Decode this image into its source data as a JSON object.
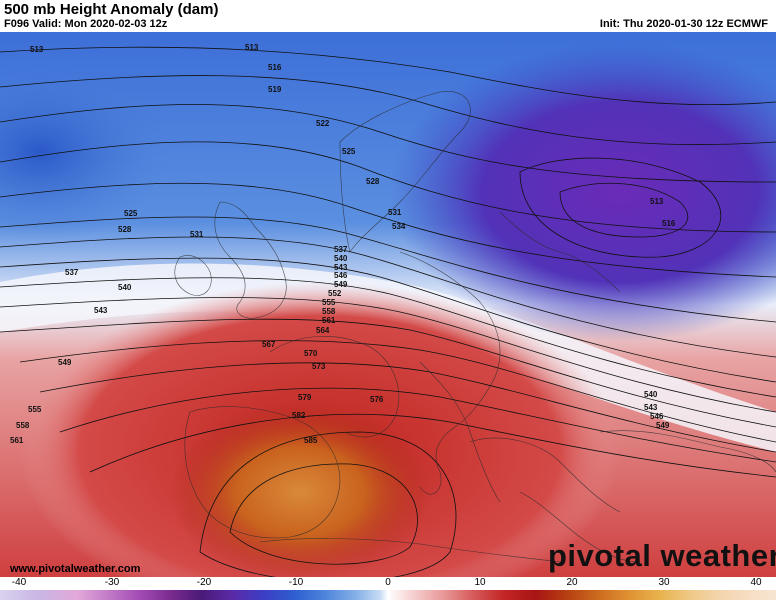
{
  "header": {
    "title": "500 mb Height Anomaly (dam)",
    "valid": "F096 Valid: Mon 2020-02-03 12z",
    "init": "Init: Thu 2020-01-30 12z ECMWF"
  },
  "map": {
    "contour_labels": [
      "513",
      "513",
      "516",
      "519",
      "522",
      "525",
      "528",
      "531",
      "534",
      "537",
      "540",
      "543",
      "546",
      "549",
      "552",
      "555",
      "558",
      "561",
      "564",
      "567",
      "570",
      "573",
      "576",
      "579",
      "582",
      "585",
      "513",
      "516",
      "540",
      "543",
      "546",
      "549",
      "525",
      "528",
      "531",
      "537",
      "540",
      "543",
      "549",
      "555",
      "558",
      "561"
    ]
  },
  "footer": {
    "website": "www.pivotalweather.com",
    "brand": "pivotal weather"
  },
  "colorbar": {
    "ticks": [
      "-40",
      "-30",
      "-20",
      "-10",
      "0",
      "10",
      "20",
      "30",
      "40"
    ]
  },
  "colors": {
    "strong_negative": "#5a2aa8",
    "negative": "#2e5fd0",
    "neutral": "#ffffff",
    "positive": "#c32525",
    "strong_positive": "#cc6a1e"
  }
}
